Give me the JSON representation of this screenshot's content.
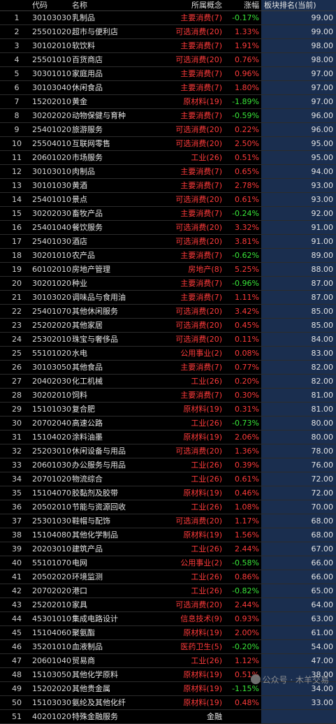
{
  "header": {
    "code": "代码",
    "name": "名称",
    "category": "所属概念",
    "change": "涨幅",
    "rank": "板块排名(当前)"
  },
  "rows": [
    {
      "idx": "1",
      "code": "30103030",
      "name": "乳制品",
      "category": "主要消费(7)",
      "change": "-0.17%",
      "rank": "99.00"
    },
    {
      "idx": "2",
      "code": "25501020",
      "name": "超市与便利店",
      "category": "可选消费(20)",
      "change": "1.33%",
      "rank": "99.00"
    },
    {
      "idx": "3",
      "code": "30102010",
      "name": "软饮料",
      "category": "主要消费(7)",
      "change": "1.91%",
      "rank": "98.00"
    },
    {
      "idx": "4",
      "code": "25501010",
      "name": "百货商店",
      "category": "可选消费(20)",
      "change": "0.76%",
      "rank": "98.00"
    },
    {
      "idx": "5",
      "code": "30301010",
      "name": "家庭用品",
      "category": "主要消费(7)",
      "change": "0.96%",
      "rank": "97.00"
    },
    {
      "idx": "6",
      "code": "30103040",
      "name": "休闲食品",
      "category": "主要消费(7)",
      "change": "1.80%",
      "rank": "97.00"
    },
    {
      "idx": "7",
      "code": "15202010",
      "name": "黄金",
      "category": "原材料(19)",
      "change": "-1.89%",
      "rank": "97.00"
    },
    {
      "idx": "8",
      "code": "30202020",
      "name": "动物保健与育种",
      "category": "主要消费(7)",
      "change": "-0.59%",
      "rank": "96.00"
    },
    {
      "idx": "9",
      "code": "25401020",
      "name": "旅游服务",
      "category": "可选消费(20)",
      "change": "0.22%",
      "rank": "96.00"
    },
    {
      "idx": "10",
      "code": "25504010",
      "name": "互联网零售",
      "category": "可选消费(20)",
      "change": "2.50%",
      "rank": "95.00"
    },
    {
      "idx": "11",
      "code": "20601020",
      "name": "市场服务",
      "category": "工业(26)",
      "change": "0.51%",
      "rank": "95.00"
    },
    {
      "idx": "12",
      "code": "30103010",
      "name": "肉制品",
      "category": "主要消费(7)",
      "change": "0.65%",
      "rank": "94.00"
    },
    {
      "idx": "13",
      "code": "30101030",
      "name": "黄酒",
      "category": "主要消费(7)",
      "change": "2.78%",
      "rank": "93.00"
    },
    {
      "idx": "14",
      "code": "25401010",
      "name": "景点",
      "category": "可选消费(20)",
      "change": "0.61%",
      "rank": "93.00"
    },
    {
      "idx": "15",
      "code": "30202030",
      "name": "畜牧产品",
      "category": "主要消费(7)",
      "change": "-0.24%",
      "rank": "92.00"
    },
    {
      "idx": "16",
      "code": "25401040",
      "name": "餐饮服务",
      "category": "可选消费(20)",
      "change": "3.32%",
      "rank": "91.00"
    },
    {
      "idx": "17",
      "code": "25401030",
      "name": "酒店",
      "category": "可选消费(20)",
      "change": "3.81%",
      "rank": "91.00"
    },
    {
      "idx": "18",
      "code": "30201010",
      "name": "农产品",
      "category": "主要消费(7)",
      "change": "-0.62%",
      "rank": "89.00"
    },
    {
      "idx": "19",
      "code": "60102010",
      "name": "房地产管理",
      "category": "房地产(8)",
      "change": "5.25%",
      "rank": "88.00"
    },
    {
      "idx": "20",
      "code": "30201020",
      "name": "种业",
      "category": "主要消费(7)",
      "change": "-0.96%",
      "rank": "87.00"
    },
    {
      "idx": "21",
      "code": "30103020",
      "name": "调味品与食用油",
      "category": "主要消费(7)",
      "change": "1.11%",
      "rank": "87.00"
    },
    {
      "idx": "22",
      "code": "25401070",
      "name": "其他休闲服务",
      "category": "可选消费(20)",
      "change": "3.42%",
      "rank": "85.00"
    },
    {
      "idx": "23",
      "code": "25202020",
      "name": "其他家居",
      "category": "可选消费(20)",
      "change": "0.45%",
      "rank": "85.00"
    },
    {
      "idx": "24",
      "code": "25302010",
      "name": "珠宝与奢侈品",
      "category": "可选消费(20)",
      "change": "0.11%",
      "rank": "84.00"
    },
    {
      "idx": "25",
      "code": "55101020",
      "name": "水电",
      "category": "公用事业(2)",
      "change": "0.08%",
      "rank": "83.00"
    },
    {
      "idx": "26",
      "code": "30103050",
      "name": "其他食品",
      "category": "主要消费(7)",
      "change": "0.77%",
      "rank": "82.00"
    },
    {
      "idx": "27",
      "code": "20402030",
      "name": "化工机械",
      "category": "工业(26)",
      "change": "0.20%",
      "rank": "82.00"
    },
    {
      "idx": "28",
      "code": "30202010",
      "name": "饲料",
      "category": "主要消费(7)",
      "change": "0.30%",
      "rank": "81.00"
    },
    {
      "idx": "29",
      "code": "15101030",
      "name": "复合肥",
      "category": "原材料(19)",
      "change": "0.31%",
      "rank": "81.00"
    },
    {
      "idx": "30",
      "code": "20702040",
      "name": "高速公路",
      "category": "工业(26)",
      "change": "-0.73%",
      "rank": "80.00"
    },
    {
      "idx": "31",
      "code": "15104020",
      "name": "涂料油墨",
      "category": "原材料(19)",
      "change": "2.06%",
      "rank": "80.00"
    },
    {
      "idx": "32",
      "code": "25203010",
      "name": "休闲设备与用品",
      "category": "可选消费(20)",
      "change": "1.36%",
      "rank": "78.00"
    },
    {
      "idx": "33",
      "code": "20601030",
      "name": "办公服务与用品",
      "category": "工业(26)",
      "change": "0.39%",
      "rank": "76.00"
    },
    {
      "idx": "34",
      "code": "20701020",
      "name": "物流综合",
      "category": "工业(26)",
      "change": "0.61%",
      "rank": "72.00"
    },
    {
      "idx": "35",
      "code": "15104070",
      "name": "胶黏剂及胶带",
      "category": "原材料(19)",
      "change": "0.46%",
      "rank": "72.00"
    },
    {
      "idx": "36",
      "code": "20502010",
      "name": "节能与资源回收",
      "category": "工业(26)",
      "change": "1.08%",
      "rank": "70.00"
    },
    {
      "idx": "37",
      "code": "25301030",
      "name": "鞋帽与配饰",
      "category": "可选消费(20)",
      "change": "1.17%",
      "rank": "68.00"
    },
    {
      "idx": "38",
      "code": "15104080",
      "name": "其他化学制品",
      "category": "原材料(19)",
      "change": "1.56%",
      "rank": "68.00"
    },
    {
      "idx": "39",
      "code": "20203010",
      "name": "建筑产品",
      "category": "工业(26)",
      "change": "2.44%",
      "rank": "67.00"
    },
    {
      "idx": "40",
      "code": "55101070",
      "name": "电网",
      "category": "公用事业(2)",
      "change": "-0.58%",
      "rank": "66.00"
    },
    {
      "idx": "41",
      "code": "20502020",
      "name": "环境监测",
      "category": "工业(26)",
      "change": "0.86%",
      "rank": "66.00"
    },
    {
      "idx": "42",
      "code": "20702020",
      "name": "港口",
      "category": "工业(26)",
      "change": "-0.82%",
      "rank": "65.00"
    },
    {
      "idx": "43",
      "code": "25202010",
      "name": "家具",
      "category": "可选消费(20)",
      "change": "2.44%",
      "rank": "64.00"
    },
    {
      "idx": "44",
      "code": "45301010",
      "name": "集成电路设计",
      "category": "信息技术(9)",
      "change": "0.93%",
      "rank": "63.00"
    },
    {
      "idx": "45",
      "code": "15104060",
      "name": "聚氨酯",
      "category": "原材料(19)",
      "change": "2.00%",
      "rank": "61.00"
    },
    {
      "idx": "46",
      "code": "35201010",
      "name": "血液制品",
      "category": "医药卫生(5)",
      "change": "-0.20%",
      "rank": "54.00"
    },
    {
      "idx": "47",
      "code": "20601040",
      "name": "贸易商",
      "category": "工业(26)",
      "change": "1.12%",
      "rank": "47.00"
    },
    {
      "idx": "48",
      "code": "15103050",
      "name": "其他化学原料",
      "category": "原材料(19)",
      "change": "0.51%",
      "rank": "38.00"
    },
    {
      "idx": "49",
      "code": "15202020",
      "name": "其他贵金属",
      "category": "原材料(19)",
      "change": "-1.15%",
      "rank": "34.00"
    },
    {
      "idx": "50",
      "code": "15103030",
      "name": "氨纶及其他化纤",
      "category": "原材料(19)",
      "change": "0.48%",
      "rank": "33.00"
    },
    {
      "idx": "51",
      "code": "40201020",
      "name": "特殊金融服务",
      "category": "金融",
      "change": "",
      "rank": ""
    }
  ],
  "watermark": "公众号 · 木羊交易",
  "colors": {
    "background": "#000000",
    "up": "#ff3b3b",
    "down": "#39e639",
    "rank_bg": "#1a2e4f"
  }
}
